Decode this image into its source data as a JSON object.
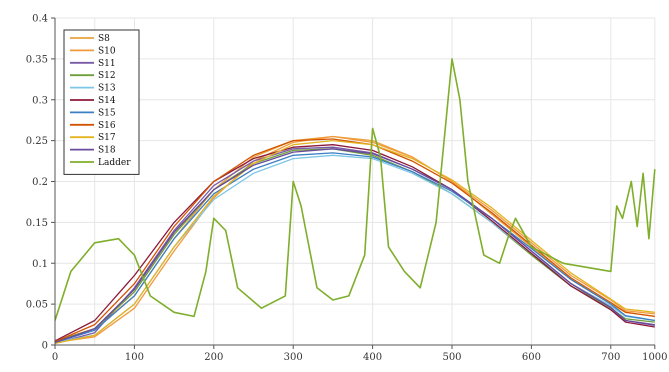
{
  "chart_data": {
    "type": "line",
    "title": "",
    "xlabel": "",
    "ylabel": "",
    "xlim": [
      0,
      1000
    ],
    "ylim": [
      0,
      0.4
    ],
    "grid": true,
    "legend_position": "top-left",
    "x_ticks": [
      {
        "pos": 0,
        "label": "0"
      },
      {
        "pos": 100,
        "label": "100"
      },
      {
        "pos": 200,
        "label": "200"
      },
      {
        "pos": 300,
        "label": "300"
      },
      {
        "pos": 400,
        "label": "400"
      },
      {
        "pos": 500,
        "label": "500"
      },
      {
        "pos": 600,
        "label": "600"
      },
      {
        "pos": 700,
        "label": "700"
      },
      {
        "pos": 1000,
        "label": "1000"
      }
    ],
    "x_ticks_minor": [
      50
    ],
    "y_ticks": [
      {
        "pos": 0,
        "label": "0"
      },
      {
        "pos": 0.05,
        "label": "0.05"
      },
      {
        "pos": 0.1,
        "label": "0.1"
      },
      {
        "pos": 0.15,
        "label": "0.15"
      },
      {
        "pos": 0.2,
        "label": "0.2"
      },
      {
        "pos": 0.25,
        "label": "0.25"
      },
      {
        "pos": 0.3,
        "label": "0.3"
      },
      {
        "pos": 0.35,
        "label": "0.35"
      },
      {
        "pos": 0.4,
        "label": "0.4"
      }
    ],
    "series": [
      {
        "name": "S8",
        "color": "#e8a33d",
        "x": [
          0,
          50,
          100,
          150,
          200,
          250,
          300,
          350,
          400,
          450,
          500,
          550,
          600,
          650,
          700,
          800,
          1000
        ],
        "y": [
          0.005,
          0.02,
          0.06,
          0.13,
          0.19,
          0.23,
          0.25,
          0.255,
          0.25,
          0.23,
          0.2,
          0.16,
          0.12,
          0.08,
          0.05,
          0.04,
          0.035
        ]
      },
      {
        "name": "S10",
        "color": "#f2993a",
        "x": [
          0,
          50,
          100,
          150,
          200,
          250,
          300,
          350,
          400,
          450,
          500,
          550,
          600,
          650,
          700,
          800,
          1000
        ],
        "y": [
          0.003,
          0.01,
          0.045,
          0.115,
          0.18,
          0.225,
          0.248,
          0.255,
          0.248,
          0.23,
          0.2,
          0.165,
          0.125,
          0.085,
          0.055,
          0.042,
          0.038
        ]
      },
      {
        "name": "S11",
        "color": "#7b5aa6",
        "x": [
          0,
          50,
          100,
          150,
          200,
          250,
          300,
          350,
          400,
          450,
          500,
          550,
          600,
          650,
          700,
          800,
          1000
        ],
        "y": [
          0.002,
          0.015,
          0.07,
          0.14,
          0.195,
          0.225,
          0.24,
          0.242,
          0.235,
          0.215,
          0.19,
          0.155,
          0.115,
          0.075,
          0.045,
          0.03,
          0.025
        ]
      },
      {
        "name": "S12",
        "color": "#6e9f3a",
        "x": [
          0,
          50,
          100,
          150,
          200,
          250,
          300,
          350,
          400,
          450,
          500,
          550,
          600,
          650,
          700,
          800,
          1000
        ],
        "y": [
          0.004,
          0.02,
          0.065,
          0.135,
          0.19,
          0.222,
          0.238,
          0.24,
          0.232,
          0.212,
          0.185,
          0.15,
          0.11,
          0.072,
          0.045,
          0.032,
          0.028
        ]
      },
      {
        "name": "S13",
        "color": "#7dc6e8",
        "x": [
          0,
          50,
          100,
          150,
          200,
          250,
          300,
          350,
          400,
          450,
          500,
          550,
          600,
          650,
          700,
          800,
          1000
        ],
        "y": [
          0.003,
          0.012,
          0.05,
          0.12,
          0.178,
          0.21,
          0.228,
          0.232,
          0.228,
          0.21,
          0.185,
          0.15,
          0.112,
          0.075,
          0.048,
          0.035,
          0.03
        ]
      },
      {
        "name": "S14",
        "color": "#8b1a3a",
        "x": [
          0,
          50,
          100,
          150,
          200,
          250,
          300,
          350,
          400,
          450,
          500,
          550,
          600,
          650,
          700,
          800,
          1000
        ],
        "y": [
          0.005,
          0.03,
          0.085,
          0.15,
          0.2,
          0.228,
          0.242,
          0.245,
          0.238,
          0.218,
          0.19,
          0.152,
          0.112,
          0.072,
          0.043,
          0.028,
          0.022
        ]
      },
      {
        "name": "S15",
        "color": "#3b7fc4",
        "x": [
          0,
          50,
          100,
          150,
          200,
          250,
          300,
          350,
          400,
          450,
          500,
          550,
          600,
          650,
          700,
          800,
          1000
        ],
        "y": [
          0.003,
          0.018,
          0.06,
          0.13,
          0.185,
          0.215,
          0.232,
          0.235,
          0.23,
          0.212,
          0.188,
          0.155,
          0.118,
          0.08,
          0.05,
          0.036,
          0.03
        ]
      },
      {
        "name": "S16",
        "color": "#d35400",
        "x": [
          0,
          50,
          100,
          150,
          200,
          250,
          300,
          350,
          400,
          450,
          500,
          550,
          600,
          650,
          700,
          800,
          1000
        ],
        "y": [
          0.004,
          0.025,
          0.075,
          0.145,
          0.2,
          0.232,
          0.25,
          0.252,
          0.245,
          0.225,
          0.198,
          0.162,
          0.122,
          0.082,
          0.052,
          0.04,
          0.035
        ]
      },
      {
        "name": "S17",
        "color": "#e3b321",
        "x": [
          0,
          50,
          100,
          150,
          200,
          250,
          300,
          350,
          400,
          450,
          500,
          550,
          600,
          650,
          700,
          800,
          1000
        ],
        "y": [
          0.002,
          0.012,
          0.05,
          0.12,
          0.182,
          0.222,
          0.245,
          0.25,
          0.245,
          0.228,
          0.202,
          0.168,
          0.128,
          0.088,
          0.056,
          0.044,
          0.04
        ]
      },
      {
        "name": "S18",
        "color": "#6a4a9c",
        "x": [
          0,
          50,
          100,
          150,
          200,
          250,
          300,
          350,
          400,
          450,
          500,
          550,
          600,
          650,
          700,
          800,
          1000
        ],
        "y": [
          0.003,
          0.02,
          0.068,
          0.138,
          0.19,
          0.22,
          0.236,
          0.24,
          0.234,
          0.215,
          0.19,
          0.155,
          0.115,
          0.075,
          0.046,
          0.03,
          0.024
        ]
      },
      {
        "name": "Ladder",
        "color": "#7fae2b",
        "x": [
          0,
          20,
          50,
          80,
          100,
          120,
          150,
          175,
          190,
          200,
          215,
          230,
          260,
          290,
          300,
          310,
          330,
          350,
          370,
          390,
          400,
          410,
          420,
          440,
          460,
          480,
          490,
          500,
          510,
          520,
          540,
          560,
          570,
          580,
          600,
          640,
          700,
          740,
          780,
          840,
          880,
          920,
          960,
          1000
        ],
        "y": [
          0.03,
          0.09,
          0.125,
          0.13,
          0.11,
          0.06,
          0.04,
          0.035,
          0.09,
          0.155,
          0.14,
          0.07,
          0.045,
          0.06,
          0.2,
          0.17,
          0.07,
          0.055,
          0.06,
          0.11,
          0.265,
          0.23,
          0.12,
          0.09,
          0.07,
          0.15,
          0.25,
          0.35,
          0.3,
          0.2,
          0.11,
          0.1,
          0.13,
          0.155,
          0.12,
          0.1,
          0.09,
          0.17,
          0.155,
          0.2,
          0.145,
          0.21,
          0.13,
          0.215
        ]
      }
    ]
  }
}
